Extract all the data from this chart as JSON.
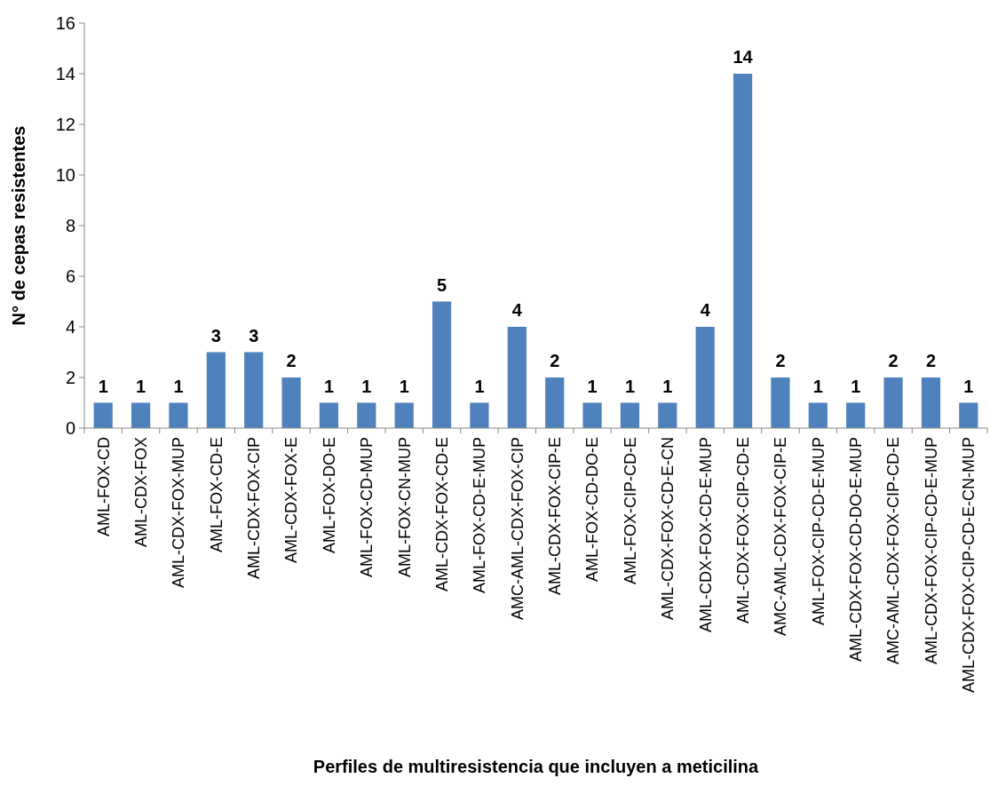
{
  "chart_data": {
    "type": "bar",
    "xlabel": "Perfiles de multiresistencia que incluyen a meticilina",
    "ylabel": "N° de cepas resistentes",
    "categories": [
      "AML-FOX-CD",
      "AML-CDX-FOX",
      "AML-CDX-FOX-MUP",
      "AML-FOX-CD-E",
      "AML-CDX-FOX-CIP",
      "AML-CDX-FOX-E",
      "AML-FOX-DO-E",
      "AML-FOX-CD-MUP",
      "AML-FOX-CN-MUP",
      "AML-CDX-FOX-CD-E",
      "AML-FOX-CD-E-MUP",
      "AMC-AML-CDX-FOX-CIP",
      "AML-CDX-FOX-CIP-E",
      "AML-FOX-CD-DO-E",
      "AML-FOX-CIP-CD-E",
      "AML-CDX-FOX-CD-E-CN",
      "AML-CDX-FOX-CD-E-MUP",
      "AML-CDX-FOX-CIP-CD-E",
      "AMC-AML-CDX-FOX-CIP-E",
      "AML-FOX-CIP-CD-E-MUP",
      "AML-CDX-FOX-CD-DO-E-MUP",
      "AMC-AML-CDX-FOX-CIP-CD-E",
      "AML-CDX-FOX-CIP-CD-E-MUP",
      "AML-CDX-FOX-CIP-CD-E-CN-MUP"
    ],
    "values": [
      1,
      1,
      1,
      3,
      3,
      2,
      1,
      1,
      1,
      5,
      1,
      4,
      2,
      1,
      1,
      1,
      4,
      14,
      2,
      1,
      1,
      2,
      2,
      1
    ],
    "color": "#4f81bd",
    "ylim": [
      0,
      16
    ],
    "yticks": [
      0,
      2,
      4,
      6,
      8,
      10,
      12,
      14,
      16
    ],
    "data_labels": true,
    "grid": false
  }
}
